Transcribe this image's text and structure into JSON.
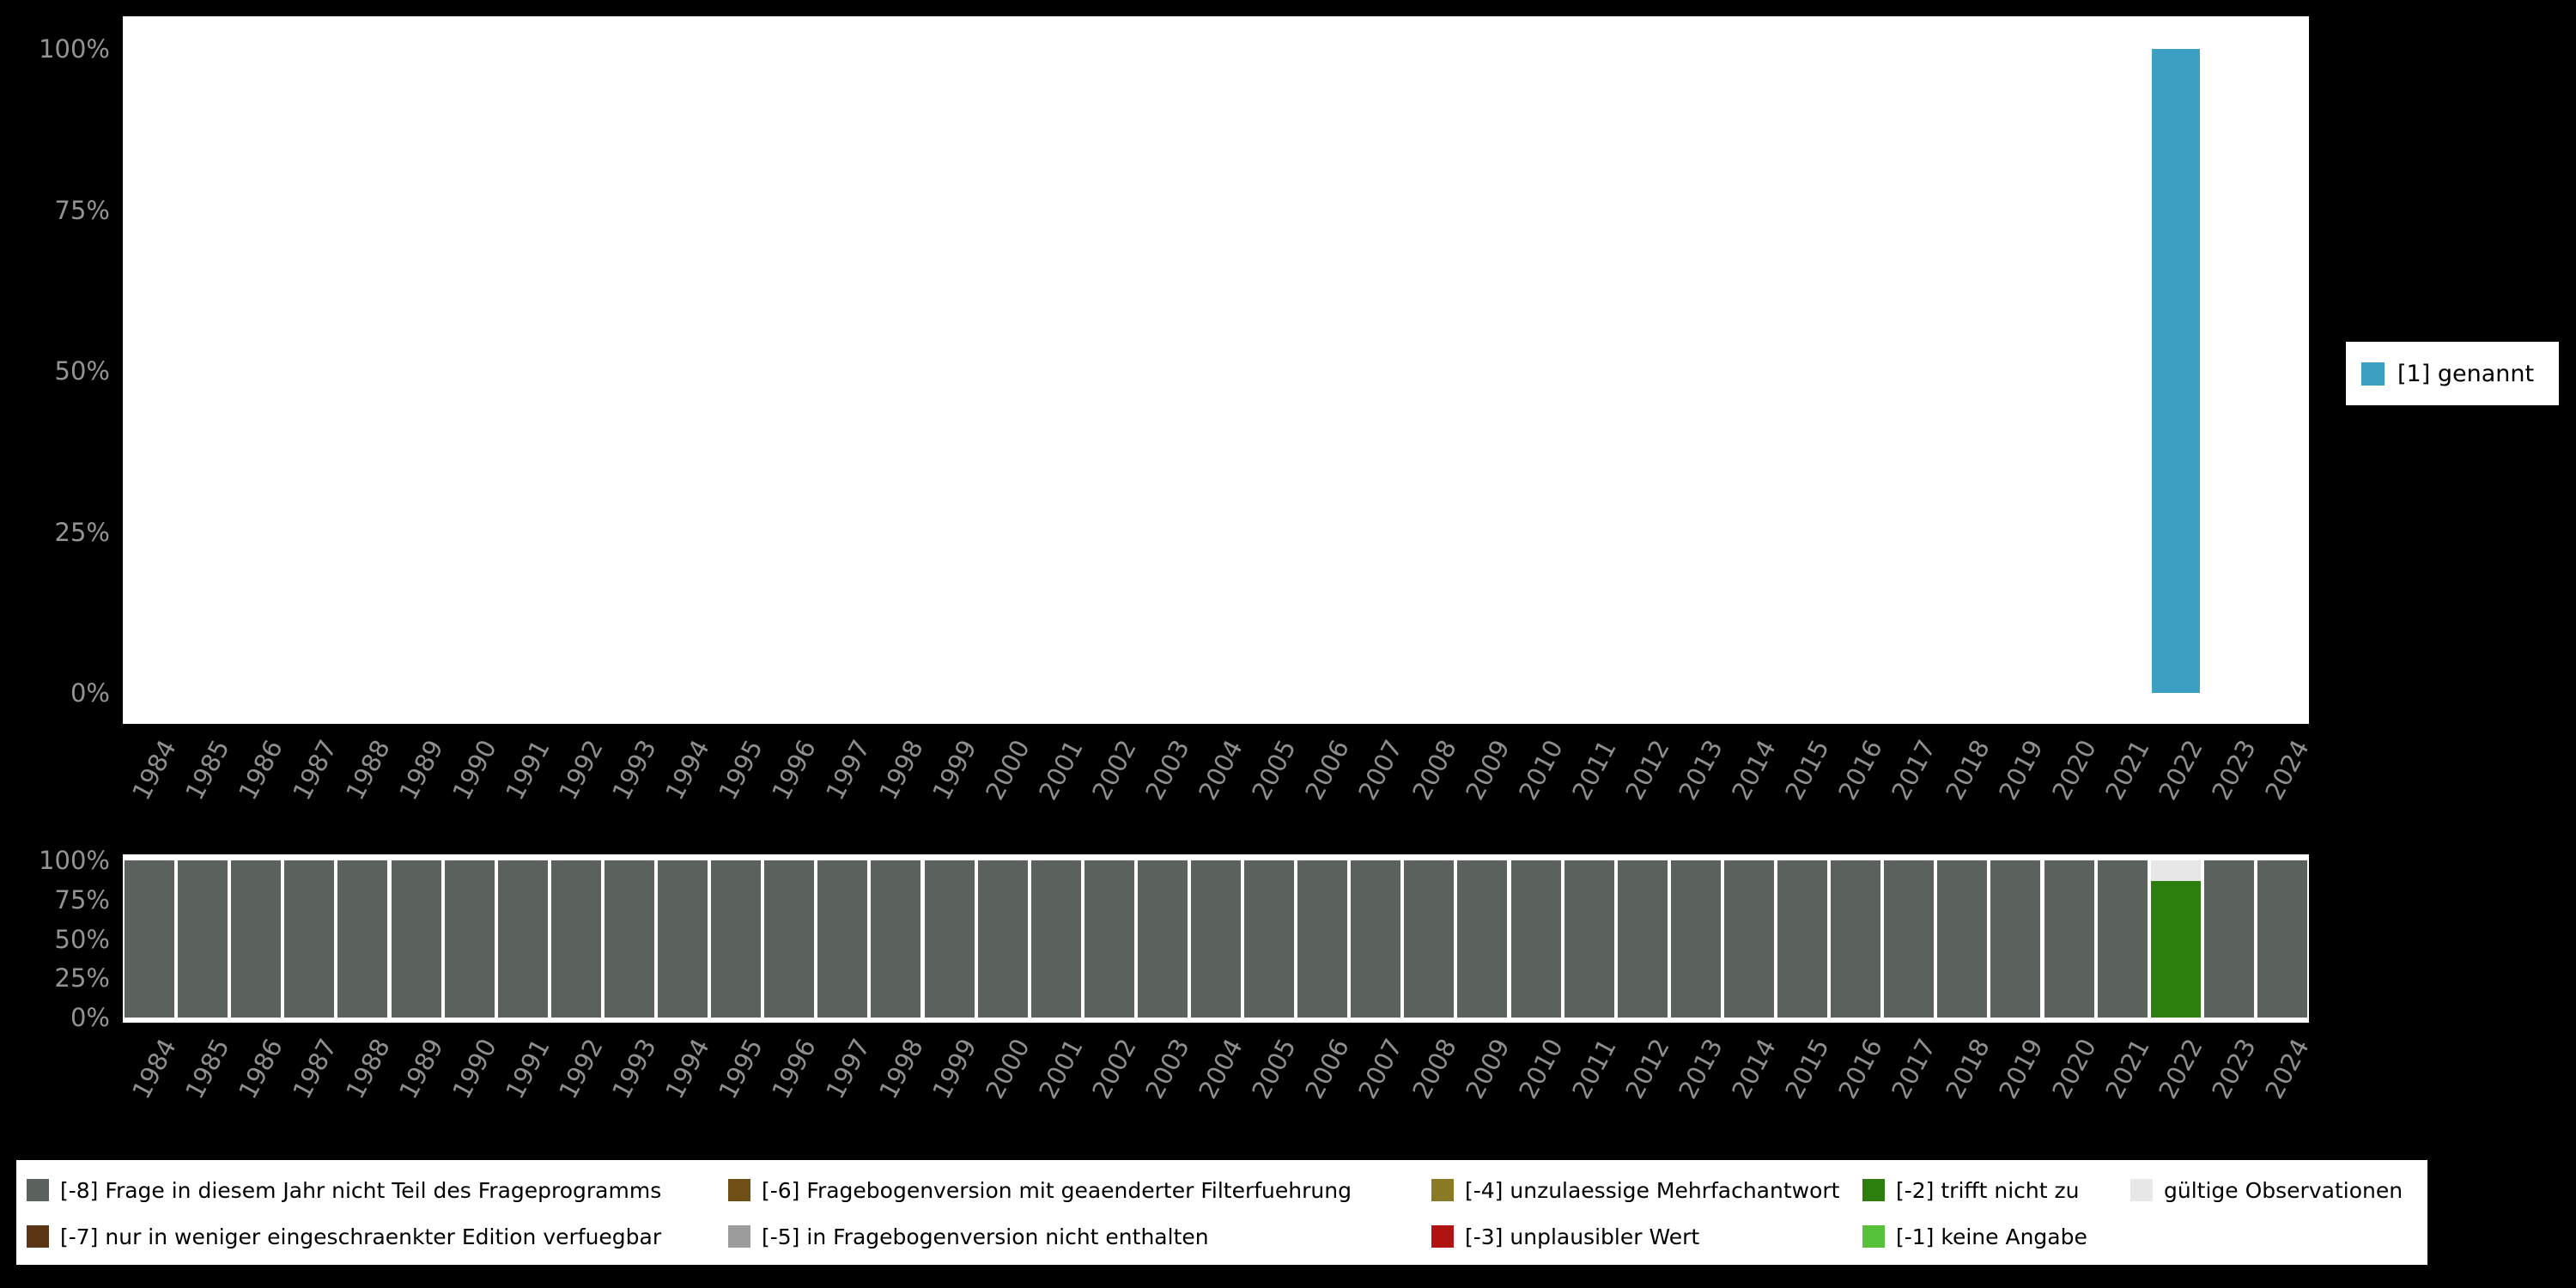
{
  "colors": {
    "page_background": "#000000",
    "plot_background": "#ffffff",
    "axis_text": "#8f8f8f",
    "legend_text": "#000000",
    "main_bar": "#3d9fc1"
  },
  "chart_data": [
    {
      "id": "main-frequencies",
      "type": "bar",
      "title": "",
      "xlabel": "",
      "ylabel": "",
      "categories": [
        "1984",
        "1985",
        "1986",
        "1987",
        "1988",
        "1989",
        "1990",
        "1991",
        "1992",
        "1993",
        "1994",
        "1995",
        "1996",
        "1997",
        "1998",
        "1999",
        "2000",
        "2001",
        "2002",
        "2003",
        "2004",
        "2005",
        "2006",
        "2007",
        "2008",
        "2009",
        "2010",
        "2011",
        "2012",
        "2013",
        "2014",
        "2015",
        "2016",
        "2017",
        "2018",
        "2019",
        "2020",
        "2021",
        "2022",
        "2023",
        "2024"
      ],
      "series": [
        {
          "name": "[1] genannt",
          "color": "#3d9fc1",
          "values_by_year": {
            "2022": 100
          }
        }
      ],
      "ylim": [
        0,
        100
      ],
      "ytick_values": [
        0,
        25,
        50,
        75,
        100
      ],
      "ytick_labels": [
        "0%",
        "25%",
        "50%",
        "75%",
        "100%"
      ],
      "grid": false,
      "legend": {
        "position": "right",
        "items": [
          {
            "label": "[1] genannt",
            "color": "#3d9fc1"
          }
        ]
      }
    },
    {
      "id": "missing-values",
      "type": "bar",
      "stacked": true,
      "title": "",
      "xlabel": "",
      "ylabel": "",
      "categories": [
        "1984",
        "1985",
        "1986",
        "1987",
        "1988",
        "1989",
        "1990",
        "1991",
        "1992",
        "1993",
        "1994",
        "1995",
        "1996",
        "1997",
        "1998",
        "1999",
        "2000",
        "2001",
        "2002",
        "2003",
        "2004",
        "2005",
        "2006",
        "2007",
        "2008",
        "2009",
        "2010",
        "2011",
        "2012",
        "2013",
        "2014",
        "2015",
        "2016",
        "2017",
        "2018",
        "2019",
        "2020",
        "2021",
        "2022",
        "2023",
        "2024"
      ],
      "default_stack": [
        {
          "code": "-8",
          "label": "[-8] Frage in diesem Jahr nicht Teil des Frageprogramms",
          "color": "#5b625e",
          "value": 100
        }
      ],
      "stacks_by_year": {
        "2022": [
          {
            "code": "-2",
            "label": "[-2] trifft nicht zu",
            "color": "#2e7d0f",
            "value": 87
          },
          {
            "code": "valid",
            "label": "gültige Observationen",
            "color": "#e7e7e7",
            "value": 13
          }
        ]
      },
      "ylim": [
        0,
        100
      ],
      "ytick_values": [
        0,
        25,
        50,
        75,
        100
      ],
      "ytick_labels": [
        "0%",
        "25%",
        "50%",
        "75%",
        "100%"
      ],
      "legend_rows": [
        [
          {
            "label": "[-8] Frage in diesem Jahr nicht Teil des Frageprogramms",
            "color": "#5b625e"
          },
          {
            "label": "[-6] Fragebogenversion mit geaenderter Filterfuehrung",
            "color": "#6e4f16"
          },
          {
            "label": "[-4] unzulaessige Mehrfachantwort",
            "color": "#8a7a25"
          },
          {
            "label": "[-2] trifft nicht zu",
            "color": "#2e7d0f"
          },
          {
            "label": "gültige Observationen",
            "color": "#e7e7e7"
          }
        ],
        [
          {
            "label": "[-7] nur in weniger eingeschraenkter Edition verfuegbar",
            "color": "#5a3413"
          },
          {
            "label": "[-5] in Fragebogenversion nicht enthalten",
            "color": "#9c9c9c"
          },
          {
            "label": "[-3] unplausibler Wert",
            "color": "#b11212"
          },
          {
            "label": "[-1] keine Angabe",
            "color": "#58c13c"
          }
        ]
      ]
    }
  ]
}
